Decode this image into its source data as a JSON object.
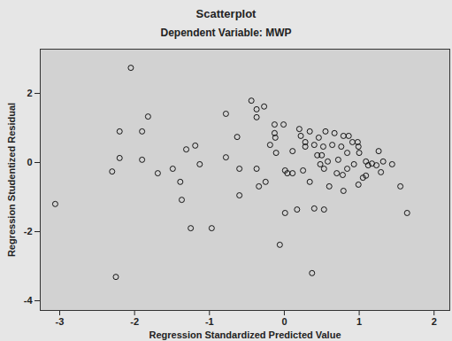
{
  "chart_data": {
    "type": "scatter",
    "title": "Scatterplot",
    "subtitle": "Dependent Variable: MWP",
    "x_label": "Regression Standardized Predicted Value",
    "y_label": "Regression Studentized Residual",
    "xlim": [
      -3.26,
      2.21
    ],
    "ylim": [
      -4.28,
      3.28
    ],
    "xticks": [
      -3,
      -2,
      -1,
      0,
      1,
      2
    ],
    "yticks": [
      -4,
      -2,
      0,
      2
    ],
    "grid": false,
    "marker": "hollow_circle",
    "color": "#000000",
    "x": [
      -2.05,
      -3.06,
      -2.25,
      -2.2,
      -1.82,
      -1.9,
      -2.2,
      -2.3,
      -1.9,
      -1.69,
      -1.49,
      -1.39,
      -1.37,
      -1.31,
      -1.19,
      -1.13,
      -1.25,
      -0.97,
      -0.78,
      -0.78,
      -0.63,
      -0.6,
      -0.6,
      -0.44,
      -0.37,
      -0.37,
      -0.37,
      -0.34,
      -0.27,
      -0.25,
      -0.19,
      -0.13,
      -0.13,
      -0.12,
      -0.11,
      -0.06,
      -0.01,
      0.01,
      0.01,
      0.04,
      0.11,
      0.11,
      0.17,
      0.2,
      0.22,
      0.25,
      0.28,
      0.28,
      0.34,
      0.34,
      0.37,
      0.4,
      0.4,
      0.44,
      0.46,
      0.48,
      0.5,
      0.52,
      0.53,
      0.53,
      0.55,
      0.58,
      0.6,
      0.64,
      0.67,
      0.7,
      0.72,
      0.76,
      0.78,
      0.79,
      0.79,
      0.84,
      0.84,
      0.86,
      0.91,
      0.93,
      0.98,
      0.99,
      1.0,
      1.05,
      1.09,
      1.12,
      1.17,
      1.23,
      1.26,
      1.29,
      1.32,
      1.44,
      1.55,
      1.64,
      0.99,
      1.09
    ],
    "values": [
      2.74,
      -1.2,
      -3.31,
      0.9,
      1.33,
      0.9,
      0.13,
      -0.26,
      0.08,
      -0.31,
      -0.18,
      -0.56,
      -1.08,
      0.38,
      0.49,
      -0.05,
      -1.9,
      -1.9,
      1.41,
      0.15,
      0.74,
      -0.18,
      -0.95,
      1.79,
      1.54,
      1.31,
      -0.18,
      -0.69,
      1.62,
      -0.56,
      0.51,
      1.1,
      0.85,
      0.72,
      0.28,
      -2.38,
      1.1,
      -0.23,
      -1.46,
      -0.31,
      0.33,
      -0.31,
      -1.36,
      0.97,
      0.77,
      -0.23,
      0.59,
      0.46,
      -0.56,
      0.9,
      -3.2,
      0.51,
      -1.33,
      0.21,
      0.72,
      -0.05,
      0.21,
      0.46,
      -0.18,
      -1.36,
      0.9,
      0.03,
      -0.69,
      0.51,
      0.85,
      -0.31,
      0.08,
      0.46,
      -0.36,
      0.77,
      -0.82,
      0.28,
      -0.18,
      0.77,
      0.59,
      -0.05,
      0.59,
      0.46,
      0.28,
      -0.44,
      0.03,
      -0.08,
      -0.03,
      -0.08,
      0.33,
      -0.28,
      0.03,
      -0.05,
      -0.69,
      -1.46,
      -0.64,
      -0.38
    ]
  }
}
